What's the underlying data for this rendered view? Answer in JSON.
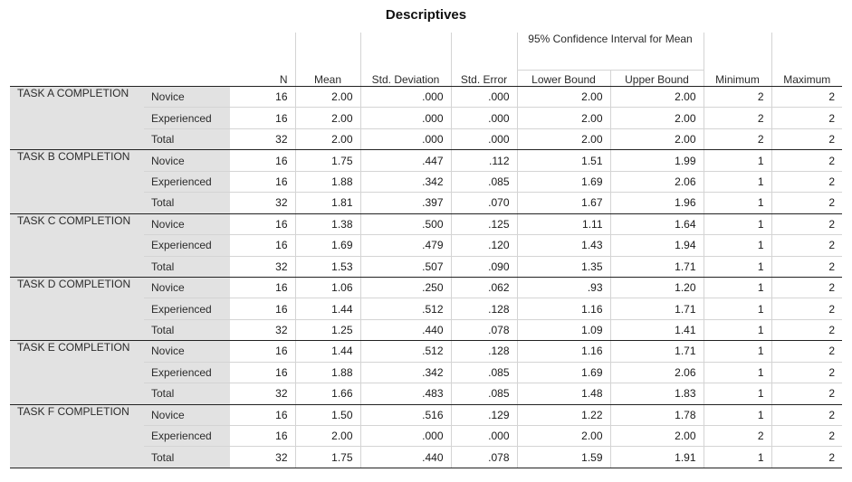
{
  "title": "Descriptives",
  "headers": {
    "n": "N",
    "mean": "Mean",
    "std_deviation": "Std. Deviation",
    "std_error": "Std. Error",
    "ci_group": "95% Confidence Interval for Mean",
    "lower_bound": "Lower Bound",
    "upper_bound": "Upper Bound",
    "minimum": "Minimum",
    "maximum": "Maximum"
  },
  "tasks": [
    {
      "label": "TASK A COMPLETION",
      "rows": [
        {
          "group": "Novice",
          "n": "16",
          "mean": "2.00",
          "sd": ".000",
          "se": ".000",
          "lower": "2.00",
          "upper": "2.00",
          "min": "2",
          "max": "2"
        },
        {
          "group": "Experienced",
          "n": "16",
          "mean": "2.00",
          "sd": ".000",
          "se": ".000",
          "lower": "2.00",
          "upper": "2.00",
          "min": "2",
          "max": "2"
        },
        {
          "group": "Total",
          "n": "32",
          "mean": "2.00",
          "sd": ".000",
          "se": ".000",
          "lower": "2.00",
          "upper": "2.00",
          "min": "2",
          "max": "2"
        }
      ]
    },
    {
      "label": "TASK B COMPLETION",
      "rows": [
        {
          "group": "Novice",
          "n": "16",
          "mean": "1.75",
          "sd": ".447",
          "se": ".112",
          "lower": "1.51",
          "upper": "1.99",
          "min": "1",
          "max": "2"
        },
        {
          "group": "Experienced",
          "n": "16",
          "mean": "1.88",
          "sd": ".342",
          "se": ".085",
          "lower": "1.69",
          "upper": "2.06",
          "min": "1",
          "max": "2"
        },
        {
          "group": "Total",
          "n": "32",
          "mean": "1.81",
          "sd": ".397",
          "se": ".070",
          "lower": "1.67",
          "upper": "1.96",
          "min": "1",
          "max": "2"
        }
      ]
    },
    {
      "label": "TASK C COMPLETION",
      "rows": [
        {
          "group": "Novice",
          "n": "16",
          "mean": "1.38",
          "sd": ".500",
          "se": ".125",
          "lower": "1.11",
          "upper": "1.64",
          "min": "1",
          "max": "2"
        },
        {
          "group": "Experienced",
          "n": "16",
          "mean": "1.69",
          "sd": ".479",
          "se": ".120",
          "lower": "1.43",
          "upper": "1.94",
          "min": "1",
          "max": "2"
        },
        {
          "group": "Total",
          "n": "32",
          "mean": "1.53",
          "sd": ".507",
          "se": ".090",
          "lower": "1.35",
          "upper": "1.71",
          "min": "1",
          "max": "2"
        }
      ]
    },
    {
      "label": "TASK D COMPLETION",
      "rows": [
        {
          "group": "Novice",
          "n": "16",
          "mean": "1.06",
          "sd": ".250",
          "se": ".062",
          "lower": ".93",
          "upper": "1.20",
          "min": "1",
          "max": "2"
        },
        {
          "group": "Experienced",
          "n": "16",
          "mean": "1.44",
          "sd": ".512",
          "se": ".128",
          "lower": "1.16",
          "upper": "1.71",
          "min": "1",
          "max": "2"
        },
        {
          "group": "Total",
          "n": "32",
          "mean": "1.25",
          "sd": ".440",
          "se": ".078",
          "lower": "1.09",
          "upper": "1.41",
          "min": "1",
          "max": "2"
        }
      ]
    },
    {
      "label": "TASK E COMPLETION",
      "rows": [
        {
          "group": "Novice",
          "n": "16",
          "mean": "1.44",
          "sd": ".512",
          "se": ".128",
          "lower": "1.16",
          "upper": "1.71",
          "min": "1",
          "max": "2"
        },
        {
          "group": "Experienced",
          "n": "16",
          "mean": "1.88",
          "sd": ".342",
          "se": ".085",
          "lower": "1.69",
          "upper": "2.06",
          "min": "1",
          "max": "2"
        },
        {
          "group": "Total",
          "n": "32",
          "mean": "1.66",
          "sd": ".483",
          "se": ".085",
          "lower": "1.48",
          "upper": "1.83",
          "min": "1",
          "max": "2"
        }
      ]
    },
    {
      "label": "TASK F COMPLETION",
      "rows": [
        {
          "group": "Novice",
          "n": "16",
          "mean": "1.50",
          "sd": ".516",
          "se": ".129",
          "lower": "1.22",
          "upper": "1.78",
          "min": "1",
          "max": "2"
        },
        {
          "group": "Experienced",
          "n": "16",
          "mean": "2.00",
          "sd": ".000",
          "se": ".000",
          "lower": "2.00",
          "upper": "2.00",
          "min": "2",
          "max": "2"
        },
        {
          "group": "Total",
          "n": "32",
          "mean": "1.75",
          "sd": ".440",
          "se": ".078",
          "lower": "1.59",
          "upper": "1.91",
          "min": "1",
          "max": "2"
        }
      ]
    }
  ],
  "colors": {
    "label_background": "#e2e2e2",
    "rule_dark": "#222222",
    "rule_light": "#d4d4d4"
  }
}
